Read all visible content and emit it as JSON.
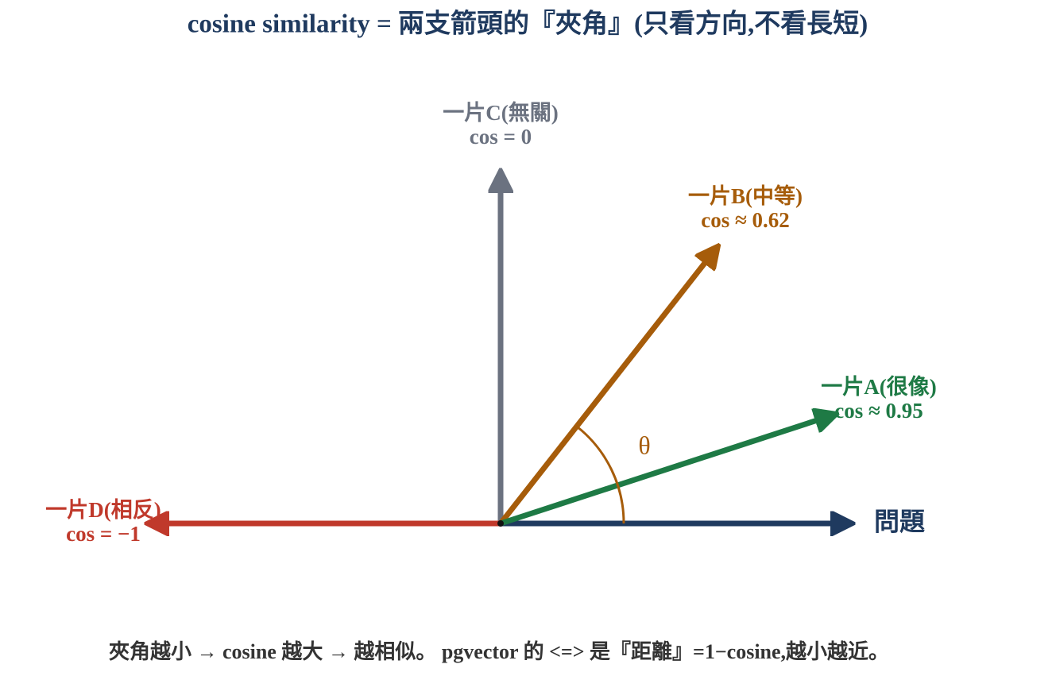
{
  "title": "cosine similarity = 兩支箭頭的『夾角』(只看方向,不看長短)",
  "vectors": [
    {
      "label": "問題"
    },
    {
      "label": "一片A(很像)",
      "cos": "cos ≈ 0.95"
    },
    {
      "label": "一片B(中等)",
      "cos": "cos ≈ 0.62"
    },
    {
      "label": "一片C(無關)",
      "cos": "cos = 0"
    },
    {
      "label": "一片D(相反)",
      "cos": "cos = −1"
    }
  ],
  "angle_label": "θ",
  "caption": "夾角越小 → cosine 越大 → 越相似。 pgvector 的 <=> 是『距離』=1−cosine,越小越近。"
}
